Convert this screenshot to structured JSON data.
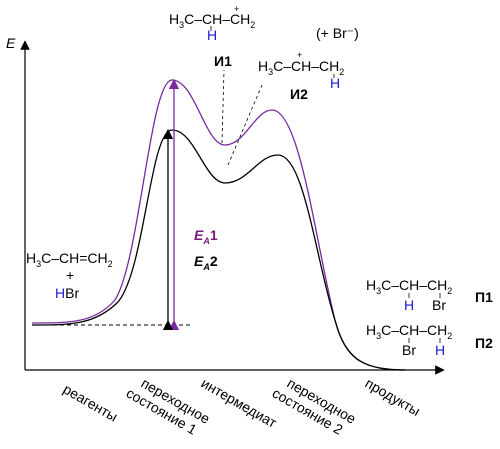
{
  "axis": {
    "y_label": "E"
  },
  "x_labels": [
    {
      "lines": [
        "реагенты"
      ]
    },
    {
      "lines": [
        "переходное",
        "состояние 1"
      ]
    },
    {
      "lines": [
        "интермедиат"
      ]
    },
    {
      "lines": [
        "переходное",
        "состояние 2"
      ]
    },
    {
      "lines": [
        "продукты"
      ]
    }
  ],
  "intermediates": {
    "i1": {
      "label": "И1",
      "formula": "H3C–CH–CH2",
      "charge": "+",
      "hydrogen": "H"
    },
    "i2": {
      "label": "И2",
      "formula": "H3C–CH–CH2",
      "charge": "+",
      "hydrogen": "H"
    },
    "counterion": "(+ Br⁻)"
  },
  "reactants": {
    "alkene": "H3C–CH=CH2",
    "plus": "+",
    "reagent_h": "H",
    "reagent_rest": "Br"
  },
  "activation": {
    "ea1": "EA1",
    "ea2": "EA2"
  },
  "products": [
    {
      "label": "П1",
      "formula": "H3C–CH–CH2",
      "below": [
        "H",
        "Br"
      ]
    },
    {
      "label": "П2",
      "formula": "H3C–CH–CH2",
      "below": [
        "Br",
        "H"
      ]
    }
  ],
  "colors": {
    "curve1": "#7a2aa0",
    "curve2": "#000000",
    "hydrogen": "#1a1ad6",
    "ea1": "#7a1a7a"
  }
}
